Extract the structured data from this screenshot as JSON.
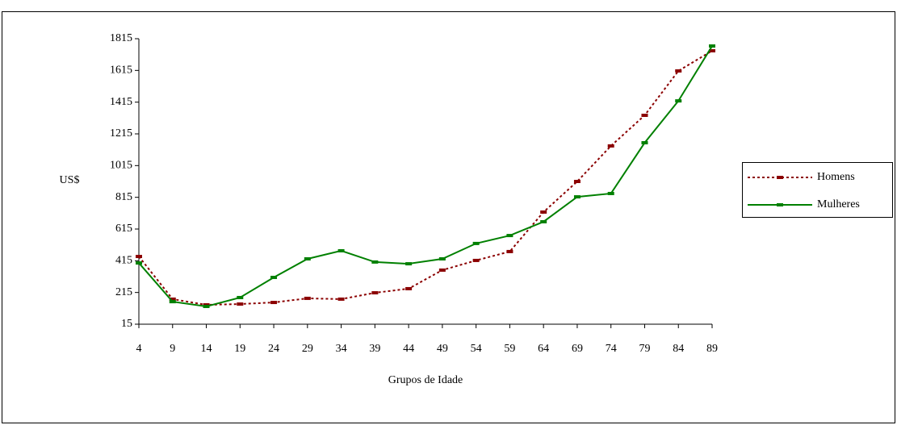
{
  "chart_data": {
    "type": "line",
    "x_label": "Grupos de Idade",
    "y_label": "US$",
    "x": [
      4,
      9,
      14,
      19,
      24,
      29,
      34,
      39,
      44,
      49,
      54,
      59,
      64,
      69,
      74,
      79,
      84,
      89
    ],
    "xlim": [
      4,
      89
    ],
    "xticks": [
      4,
      9,
      14,
      19,
      24,
      29,
      34,
      39,
      44,
      49,
      54,
      59,
      64,
      69,
      74,
      79,
      84,
      89
    ],
    "ylim": [
      15,
      1815
    ],
    "yticks": [
      15,
      215,
      415,
      615,
      815,
      1015,
      1215,
      1415,
      1615,
      1815
    ],
    "grid": false,
    "legend": "right",
    "series": [
      {
        "name": "Homens",
        "color": "#8b0000",
        "dash": true,
        "values": [
          442,
          173,
          137,
          142,
          152,
          178,
          173,
          213,
          239,
          356,
          417,
          473,
          722,
          915,
          1139,
          1332,
          1612,
          1739
        ]
      },
      {
        "name": "Mulheres",
        "color": "#008000",
        "dash": false,
        "values": [
          401,
          157,
          127,
          183,
          310,
          427,
          478,
          407,
          396,
          427,
          524,
          574,
          661,
          818,
          839,
          1159,
          1423,
          1769
        ]
      }
    ]
  }
}
